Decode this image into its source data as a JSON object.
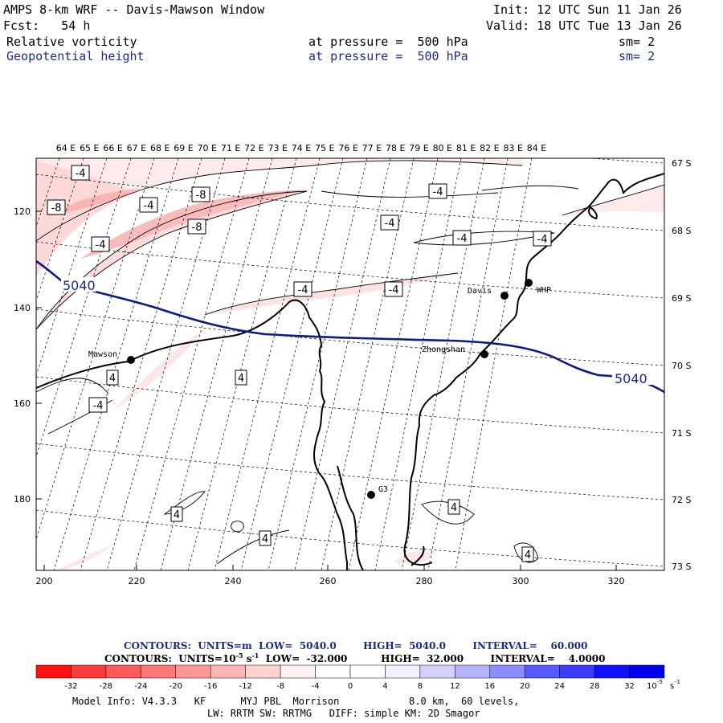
{
  "header": {
    "line1_left": "AMPS 8-km WRF -- Davis-Mawson Window",
    "line1_right": "Init: 12 UTC Sun 11 Jan 26",
    "line2_left": "Fcst:   54 h",
    "line2_right": "Valid: 18 UTC Tue 13 Jan 26",
    "field1_name": "Relative vorticity",
    "field1_level": "at pressure =  500 hPa",
    "field1_sm": "sm= 2",
    "field2_name": "Geopotential height",
    "field2_level": "at pressure =  500 hPa",
    "field2_sm": "sm= 2"
  },
  "map": {
    "top_axis": [
      "64 E",
      "65 E",
      "66 E",
      "67 E",
      "68 E",
      "69 E",
      "70 E",
      "71 E",
      "72 E",
      "73 E",
      "74 E",
      "75 E",
      "76 E",
      "77 E",
      "78 E",
      "79 E",
      "80 E",
      "81 E",
      "82 E",
      "83 E",
      "84 E"
    ],
    "right_axis": [
      "67 S",
      "68 S",
      "69 S",
      "70 S",
      "71 S",
      "72 S",
      "73 S"
    ],
    "left_axis": [
      "120",
      "140",
      "160",
      "180"
    ],
    "bottom_axis": [
      "200",
      "220",
      "240",
      "260",
      "280",
      "300",
      "320"
    ],
    "stations": [
      {
        "name": "Davis"
      },
      {
        "name": "WHP"
      },
      {
        "name": "Zhongshan"
      },
      {
        "name": "Mawson"
      },
      {
        "name": "G3"
      }
    ],
    "height_labels": [
      "5040",
      "5040"
    ],
    "vort_labels": [
      "-4",
      "-8",
      "-4",
      "-8",
      "-4",
      "-8",
      "-4",
      "-4",
      "-4",
      "-4",
      "-4",
      "-4",
      "-4",
      "4",
      "4",
      "4",
      "4",
      "4",
      "4"
    ],
    "colors": {
      "height": "#0d1a80",
      "coast": "#000000",
      "vort_light": "#fde8e8",
      "vort_mid": "#f9b4b4"
    }
  },
  "legend": {
    "contour1": "CONTOURS:  UNITS=m  LOW=  5040.0        HIGH=  5040.0        INTERVAL=    60.000",
    "contour2_a": "CONTOURS:  UNITS=10",
    "contour2_exp": "-5",
    "contour2_b": " s",
    "contour2_exp2": "-1",
    "contour2_c": "  LOW=  -32.000          HIGH=  32.000        INTERVAL=    4.0000",
    "ticks": [
      "-32",
      "-28",
      "-24",
      "-20",
      "-16",
      "-12",
      "-8",
      "-4",
      "0",
      "4",
      "8",
      "12",
      "16",
      "20",
      "24",
      "28",
      "32"
    ],
    "unit": "10",
    "unit_exp": "-5",
    "unit_tail": "s",
    "unit_exp2": "-1",
    "colors": [
      "#ff1010",
      "#ff3c3c",
      "#ff5a5a",
      "#ff7878",
      "#ff9696",
      "#ffb4b4",
      "#ffd2d2",
      "#fff0f0",
      "#ffffff",
      "#ffffff",
      "#f0f0ff",
      "#d2d2ff",
      "#b4b4ff",
      "#8c8cff",
      "#5a5aff",
      "#3c3cff",
      "#1010ff",
      "#0000f0"
    ]
  },
  "footer": {
    "line1": "Model Info: V4.3.3   KF      MYJ PBL  Morrison            8.0 km,  60 levels,",
    "line2": "LW: RRTM SW: RRTMG   DIFF: simple KM: 2D Smagor"
  }
}
